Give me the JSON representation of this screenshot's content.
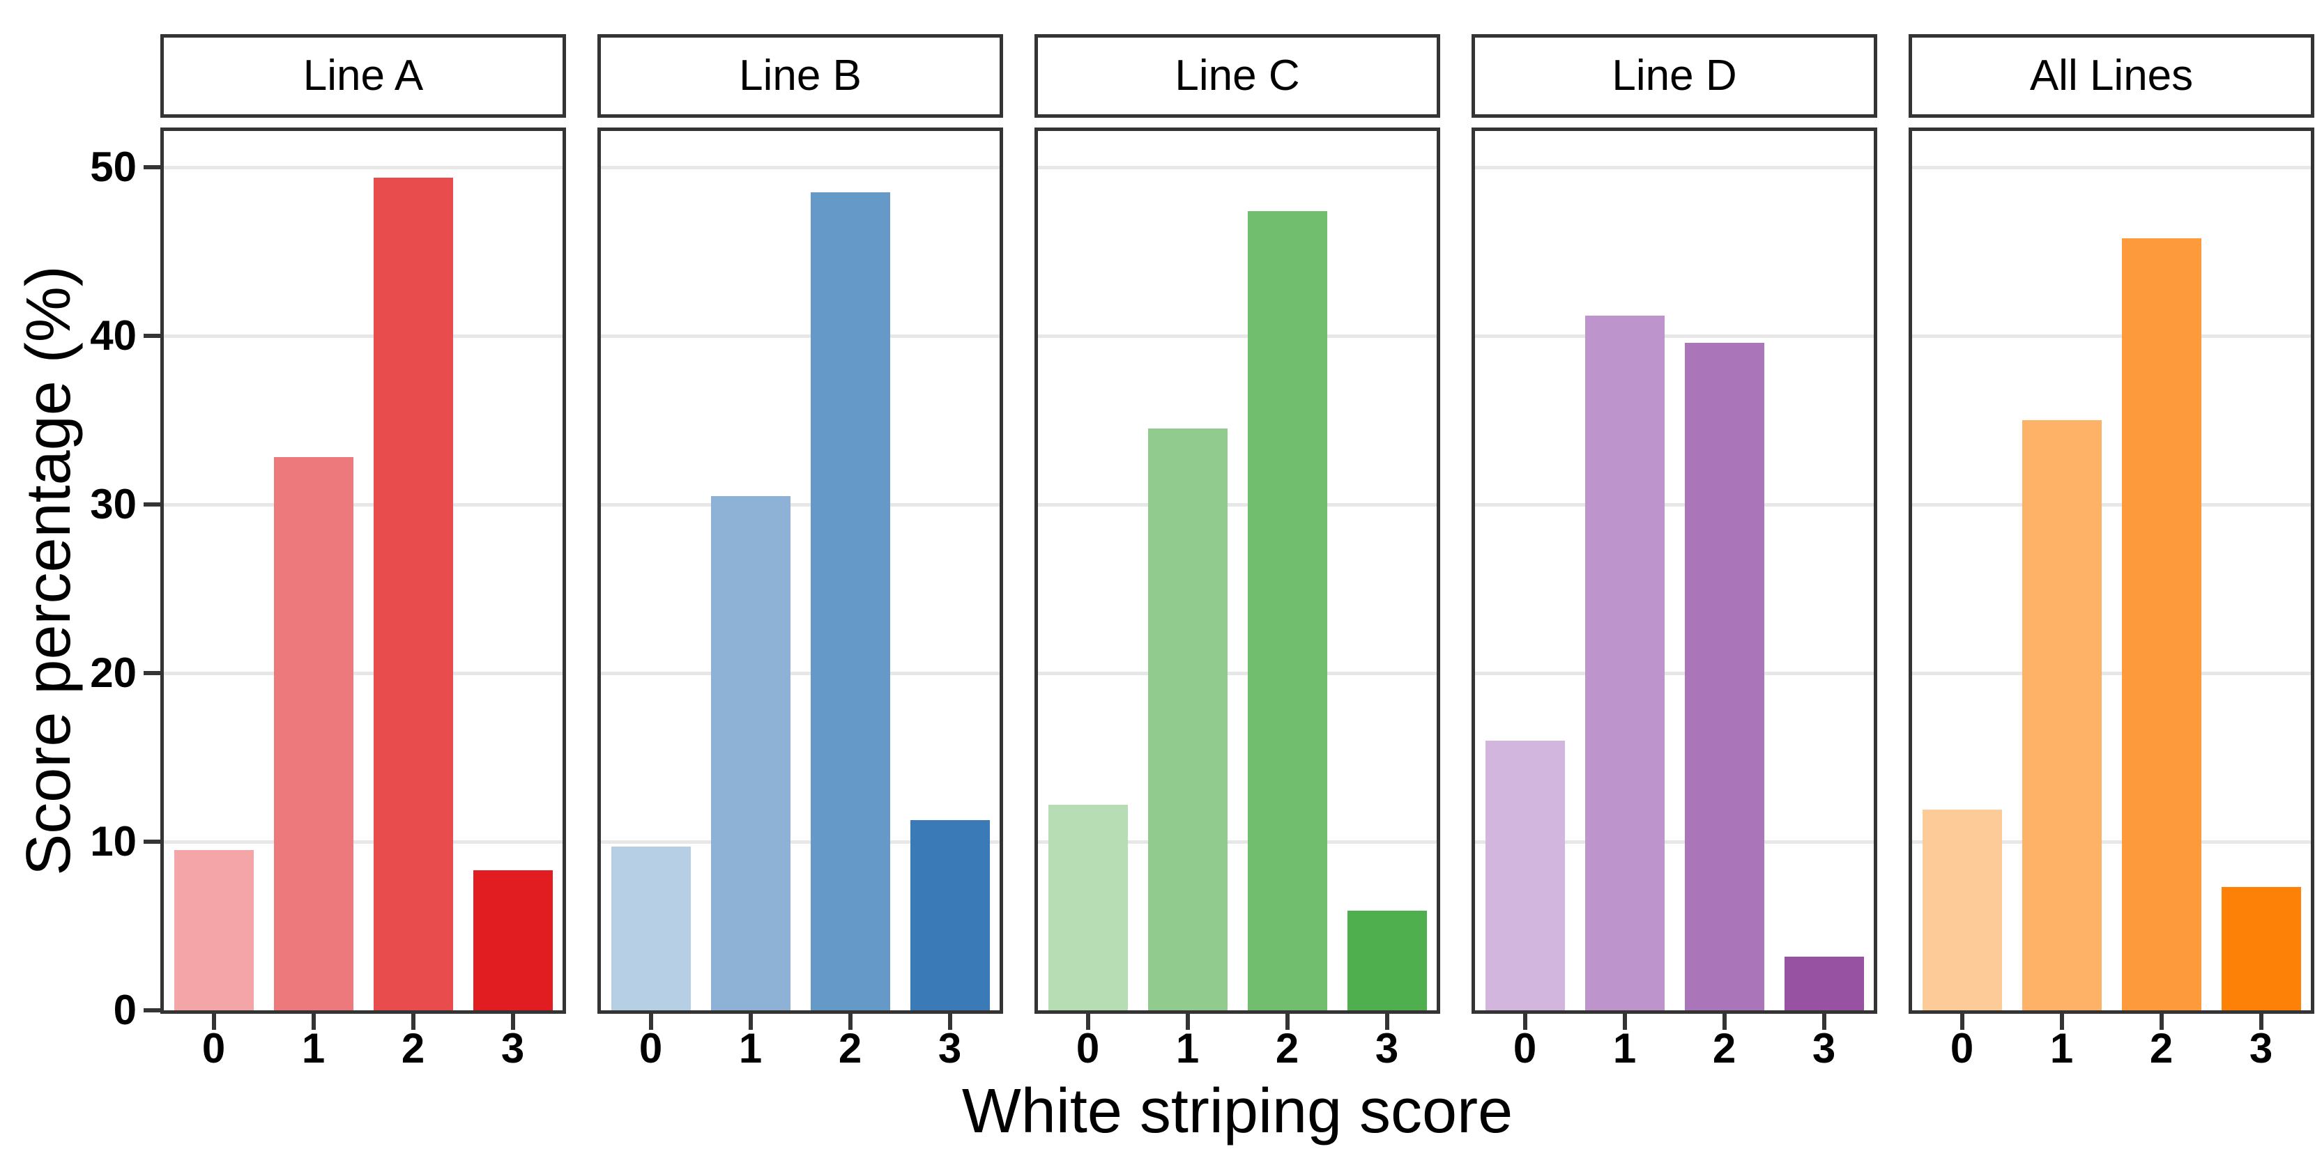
{
  "chart_data": {
    "type": "bar",
    "title": "",
    "xlabel": "White striping score",
    "ylabel": "Score percentage (%)",
    "categories": [
      "0",
      "1",
      "2",
      "3"
    ],
    "y_ticks": [
      "0",
      "10",
      "20",
      "30",
      "40",
      "50"
    ],
    "ylim": [
      0,
      52.1
    ],
    "grid": "horizontal major gridlines only",
    "legend": "none",
    "facets": "5 panels in one row with boxed strip headers",
    "panels": [
      {
        "label": "Line A",
        "values": [
          9.5,
          32.8,
          49.4,
          8.3
        ],
        "colors": [
          "#f4a5a8",
          "#ee797c",
          "#e84c4d",
          "#e21d22"
        ]
      },
      {
        "label": "Line B",
        "values": [
          9.7,
          30.5,
          48.5,
          11.3
        ],
        "colors": [
          "#b7cfe5",
          "#8db2d5",
          "#6599c8",
          "#3a7ab6"
        ]
      },
      {
        "label": "Line C",
        "values": [
          12.2,
          34.5,
          47.4,
          5.9
        ],
        "colors": [
          "#b6ddb4",
          "#91cb8e",
          "#71be6f",
          "#4fae4d"
        ]
      },
      {
        "label": "Line D",
        "values": [
          16.0,
          41.2,
          39.6,
          3.2
        ],
        "colors": [
          "#d3b6dd",
          "#bd94cc",
          "#ab75b9",
          "#9852a2"
        ]
      },
      {
        "label": "All Lines",
        "values": [
          11.9,
          35.0,
          45.8,
          7.3
        ],
        "colors": [
          "#fdcb97",
          "#fdb267",
          "#fd9a3c",
          "#fd8107"
        ]
      }
    ]
  },
  "style_colors": {
    "panel_border": "#343434",
    "tick_mark": "#343434",
    "gridline": "#e7e7e7",
    "background": "#ffffff",
    "text": "#000000"
  }
}
